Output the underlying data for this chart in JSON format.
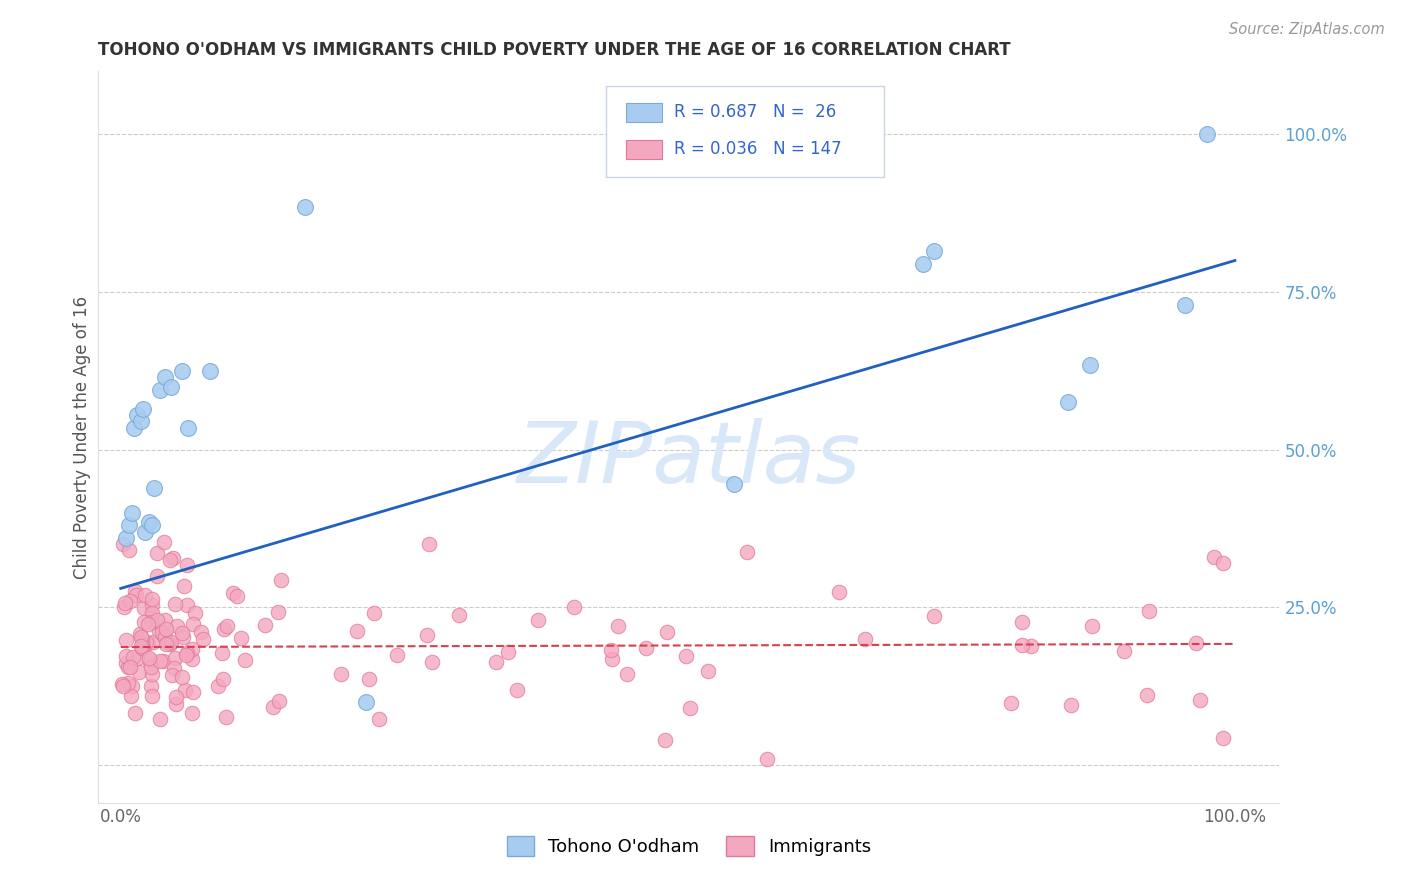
{
  "title": "TOHONO O'ODHAM VS IMMIGRANTS CHILD POVERTY UNDER THE AGE OF 16 CORRELATION CHART",
  "source": "Source: ZipAtlas.com",
  "ylabel_label": "Child Poverty Under the Age of 16",
  "tohono_color": "#A8CCF0",
  "tohono_edge_color": "#7AAAD8",
  "immigrants_color": "#F4A8C0",
  "immigrants_edge_color": "#E07898",
  "blue_line_color": "#2060C0",
  "red_line_color": "#D84050",
  "R_tohono": 0.687,
  "N_tohono": 26,
  "R_immigrants": 0.036,
  "N_immigrants": 147,
  "yticklabel_color": "#5B9FD4",
  "watermark_color": "#D8E8F8",
  "blue_text_color": "#3366CC"
}
